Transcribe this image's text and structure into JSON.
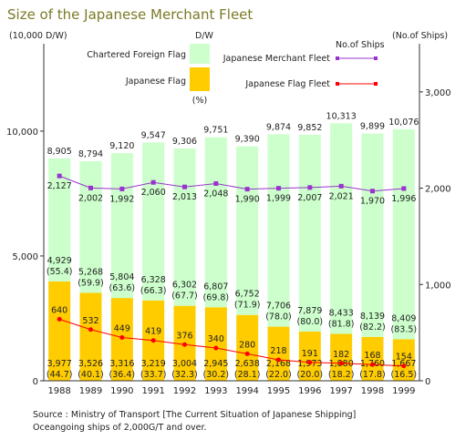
{
  "chart_data": {
    "type": "bar",
    "title": "Size of the Japanese Merchant Fleet",
    "left_unit": "(10,000 D/W)",
    "right_unit": "(No.of Ships)",
    "bars_header": "D/W",
    "ships_header": "No.of Ships",
    "percent_note": "(%)",
    "categories": [
      "1988",
      "1989",
      "1990",
      "1991",
      "1992",
      "1993",
      "1994",
      "1995",
      "1996",
      "1997",
      "1998",
      "1999"
    ],
    "totals": [
      "8,905",
      "8,794",
      "9,120",
      "9,547",
      "9,306",
      "9,751",
      "9,390",
      "9,874",
      "9,852",
      "10,313",
      "9,899",
      "10,076"
    ],
    "series": [
      {
        "name": "Japanese Flag",
        "color": "#ffcc00",
        "values": [
          3977,
          3526,
          3316,
          3219,
          3004,
          2945,
          2638,
          2168,
          1973,
          1880,
          1760,
          1667
        ],
        "labels": [
          "3,977",
          "3,526",
          "3,316",
          "3,219",
          "3,004",
          "2,945",
          "2,638",
          "2,168",
          "1,973",
          "1,880",
          "1,760",
          "1,667"
        ],
        "percents": [
          "(44.7)",
          "(40.1)",
          "(36.4)",
          "(33.7)",
          "(32.3)",
          "(30.2)",
          "(28.1)",
          "(22.0)",
          "(20.0)",
          "(18.2)",
          "(17.8)",
          "(16.5)"
        ]
      },
      {
        "name": "Chartered Foreign Flag",
        "color": "#ccffcc",
        "values": [
          4929,
          5268,
          5804,
          6328,
          6302,
          6807,
          6752,
          7706,
          7879,
          8433,
          8139,
          8409
        ],
        "labels": [
          "4,929",
          "5,268",
          "5,804",
          "6,328",
          "6,302",
          "6,807",
          "6,752",
          "7,706",
          "7,879",
          "8,433",
          "8,139",
          "8,409"
        ],
        "percents": [
          "(55.4)",
          "(59.9)",
          "(63.6)",
          "(66.3)",
          "(67.7)",
          "(69.8)",
          "(71.9)",
          "(78.0)",
          "(80.0)",
          "(81.8)",
          "(82.2)",
          "(83.5)"
        ]
      }
    ],
    "line_series": [
      {
        "name": "Japanese Merchant Fleet",
        "color": "#9933cc",
        "values": [
          2127,
          2002,
          1992,
          2060,
          2013,
          2048,
          1990,
          1999,
          2007,
          2021,
          1970,
          1996
        ],
        "labels": [
          "2,127",
          "2,002",
          "1,992",
          "2,060",
          "2,013",
          "2,048",
          "1,990",
          "1,999",
          "2,007",
          "2,021",
          "1,970",
          "1,996"
        ]
      },
      {
        "name": "Japanese Flag Fleet",
        "color": "#ff0000",
        "values": [
          640,
          532,
          449,
          419,
          376,
          340,
          280,
          218,
          191,
          182,
          168,
          154
        ],
        "labels": [
          "640",
          "532",
          "449",
          "419",
          "376",
          "340",
          "280",
          "218",
          "191",
          "182",
          "168",
          "154"
        ]
      }
    ],
    "left_axis": {
      "ylim": [
        0,
        13500
      ],
      "ticks": [
        0,
        5000,
        10000
      ],
      "tick_labels": [
        "0",
        "5,000",
        "10,000"
      ]
    },
    "right_axis": {
      "ylim": [
        0,
        3500
      ],
      "ticks": [
        0,
        1000,
        2000,
        3000
      ],
      "tick_labels": [
        "0",
        "1,000",
        "2,000",
        "3,000"
      ]
    },
    "legend_position": "top",
    "grid": false
  },
  "source_lines": [
    "Source : Ministry of Transport [The Current Situation of Japanese Shipping]",
    "Oceangoing ships of 2,000G/T and over."
  ]
}
